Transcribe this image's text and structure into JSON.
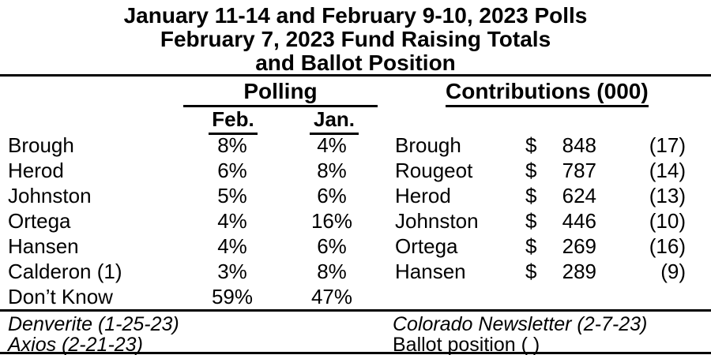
{
  "title": {
    "line1": "January 11-14 and February 9-10, 2023 Polls",
    "line2": "February 7, 2023 Fund Raising Totals",
    "line3": "and Ballot Position"
  },
  "polling": {
    "header": "Polling",
    "columns": {
      "feb": "Feb.",
      "jan": "Jan."
    },
    "rows": [
      {
        "name": "Brough",
        "feb": "8%",
        "jan": "4%"
      },
      {
        "name": "Herod",
        "feb": "6%",
        "jan": "8%"
      },
      {
        "name": "Johnston",
        "feb": "5%",
        "jan": "6%"
      },
      {
        "name": "Ortega",
        "feb": "4%",
        "jan": "16%"
      },
      {
        "name": "Hansen",
        "feb": "4%",
        "jan": "6%"
      },
      {
        "name": "Calderon (1)",
        "feb": "3%",
        "jan": "8%"
      },
      {
        "name": "Don’t Know",
        "feb": "59%",
        "jan": "47%"
      }
    ]
  },
  "contributions": {
    "header": "Contributions (000)",
    "rows": [
      {
        "name": "Brough",
        "currency": "$",
        "amount": "848",
        "ballot": "(17)"
      },
      {
        "name": "Rougeot",
        "currency": "$",
        "amount": "787",
        "ballot": "(14)"
      },
      {
        "name": "Herod",
        "currency": "$",
        "amount": "624",
        "ballot": "(13)"
      },
      {
        "name": "Johnston",
        "currency": "$",
        "amount": "446",
        "ballot": "(10)"
      },
      {
        "name": "Ortega",
        "currency": "$",
        "amount": "269",
        "ballot": "(16)"
      },
      {
        "name": "Hansen",
        "currency": "$",
        "amount": "289",
        "ballot": "(9)"
      }
    ]
  },
  "footnotes": {
    "left1": "Denverite (1-25-23)",
    "left2": "Axios (2-21-23)",
    "right1": "Colorado Newsletter (2-7-23)",
    "right2": "Ballot position ( )"
  },
  "colors": {
    "text": "#000000",
    "background": "#ffffff"
  }
}
